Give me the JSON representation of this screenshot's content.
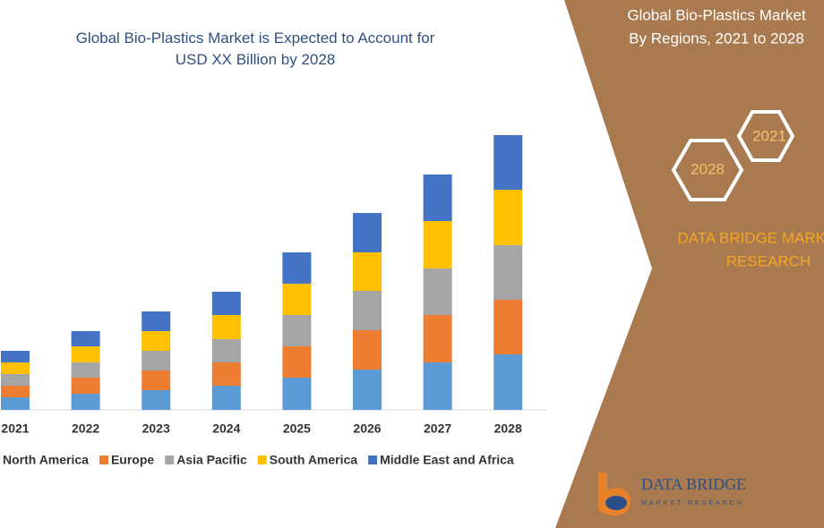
{
  "chart_data": {
    "type": "bar",
    "stacked": true,
    "title": "Global Bio-Plastics Market is Expected to Account for USD XX Billion by 2028",
    "categories": [
      "2021",
      "2022",
      "2023",
      "2024",
      "2025",
      "2026",
      "2027",
      "2028"
    ],
    "series": [
      {
        "name": "North America",
        "color": "#5b9bd5",
        "values": [
          14,
          18,
          22,
          27,
          36,
          45,
          53,
          62
        ]
      },
      {
        "name": "Europe",
        "color": "#ed7d31",
        "values": [
          13,
          18,
          22,
          26,
          35,
          44,
          53,
          61
        ]
      },
      {
        "name": "Asia Pacific",
        "color": "#a5a5a5",
        "values": [
          13,
          17,
          22,
          26,
          35,
          44,
          52,
          61
        ]
      },
      {
        "name": "South America",
        "color": "#ffc000",
        "values": [
          13,
          18,
          22,
          27,
          35,
          43,
          53,
          62
        ]
      },
      {
        "name": "Middle East and Africa",
        "color": "#4472c4",
        "values": [
          13,
          17,
          22,
          26,
          35,
          44,
          52,
          61
        ]
      }
    ]
  },
  "side_panel": {
    "title_lines": [
      "Global Bio-Plastics Market",
      "By Regions, 2021 to 2028"
    ],
    "hexagons": [
      "2028",
      "2021"
    ],
    "brand_lines": [
      "DATA BRIDGE MARKET",
      "RESEARCH"
    ],
    "logo": {
      "name": "DATA BRIDGE",
      "tagline": "MARKET RESEARCH"
    }
  }
}
